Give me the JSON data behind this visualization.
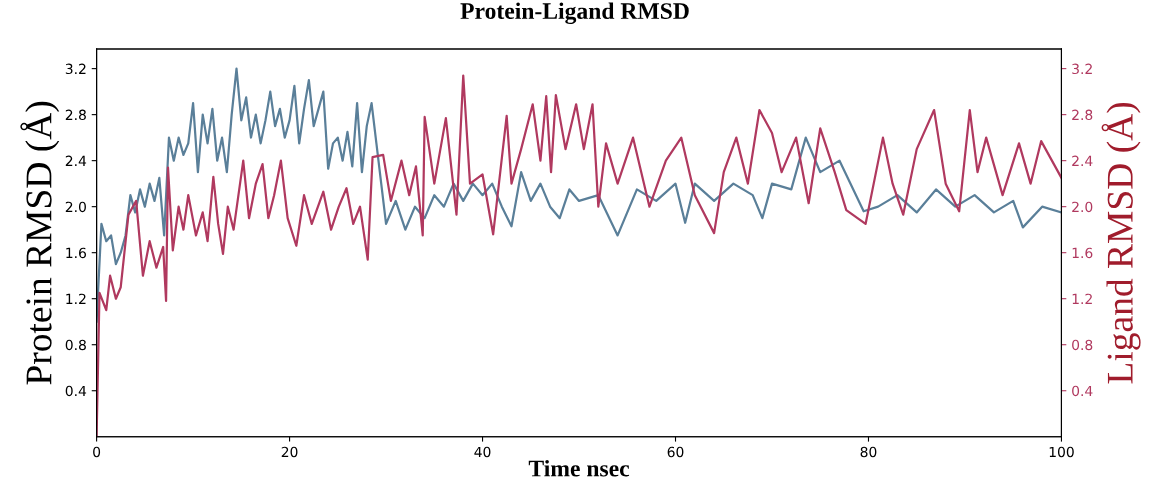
{
  "chart_data": {
    "type": "line",
    "title": "Protein-Ligand RMSD",
    "xlabel": "Time nsec",
    "ylabel": "Protein RMSD (Å)",
    "y2label": "Ligand RMSD (Å)",
    "xlim": [
      0,
      100
    ],
    "xticks": [
      0,
      20,
      40,
      60,
      80,
      100
    ],
    "ylim": [
      0,
      3.37
    ],
    "yticks": [
      0.4,
      0.8,
      1.2,
      1.6,
      {
        "value": 2,
        "label": "2.0"
      },
      2.4,
      2.8,
      3.2
    ],
    "y2lim": [
      0,
      3.37
    ],
    "y2ticks": [
      0.4,
      0.8,
      1.2,
      1.6,
      {
        "value": 2,
        "label": "2.0"
      },
      2.4,
      2.8,
      3.2
    ],
    "grid": false,
    "legend": false,
    "series": [
      {
        "color": "#5a7f99",
        "x": [
          0,
          0.5,
          1,
          1.5,
          2,
          2.5,
          3,
          3.5,
          4,
          4.5,
          5,
          5.5,
          6,
          6.5,
          7,
          7.5,
          8,
          8.5,
          9,
          9.5,
          10,
          10.5,
          11,
          11.5,
          12,
          12.5,
          13,
          13.5,
          14,
          14.5,
          15,
          15.5,
          16,
          16.5,
          17,
          17.5,
          18,
          18.5,
          19,
          19.5,
          20,
          20.5,
          21,
          21.5,
          22,
          22.5,
          23,
          23.5,
          24,
          24.5,
          25,
          25.5,
          26,
          26.5,
          27,
          27.5,
          28,
          28.5,
          29,
          29.5,
          30,
          31,
          32,
          33,
          34,
          35,
          36,
          37,
          38,
          39,
          40,
          41,
          42,
          43,
          44,
          45,
          46,
          47,
          48,
          49,
          50,
          52,
          54,
          56,
          58,
          60,
          61,
          62,
          64,
          66,
          68,
          69,
          70,
          72,
          73.5,
          75,
          77,
          79.5,
          81,
          83,
          85,
          87,
          89,
          91,
          93,
          95,
          96,
          98,
          100
        ],
        "values": [
          1.0,
          1.85,
          1.7,
          1.75,
          1.5,
          1.6,
          1.75,
          2.1,
          1.95,
          2.15,
          2.0,
          2.2,
          2.05,
          2.25,
          1.75,
          2.6,
          2.4,
          2.6,
          2.45,
          2.55,
          2.9,
          2.3,
          2.8,
          2.55,
          2.85,
          2.4,
          2.6,
          2.3,
          2.8,
          3.2,
          2.75,
          2.95,
          2.6,
          2.8,
          2.55,
          2.75,
          3.0,
          2.7,
          2.85,
          2.6,
          2.75,
          3.05,
          2.55,
          2.85,
          3.1,
          2.7,
          2.85,
          3.0,
          2.33,
          2.55,
          2.6,
          2.4,
          2.65,
          2.35,
          2.9,
          2.3,
          2.7,
          2.9,
          2.55,
          2.2,
          1.85,
          2.05,
          1.8,
          2.0,
          1.9,
          2.1,
          2.0,
          2.2,
          2.05,
          2.2,
          2.1,
          2.2,
          2.0,
          1.83,
          2.3,
          2.05,
          2.2,
          2.0,
          1.9,
          2.15,
          2.05,
          2.1,
          1.75,
          2.15,
          2.05,
          2.2,
          1.86,
          2.2,
          2.05,
          2.2,
          2.1,
          1.9,
          2.2,
          2.15,
          2.6,
          2.3,
          2.4,
          1.96,
          2.0,
          2.1,
          1.95,
          2.15,
          2.0,
          2.1,
          1.95,
          2.05,
          1.82,
          2.0,
          1.95
        ]
      },
      {
        "color": "#b0395f",
        "axis": "y2",
        "x": [
          0,
          0.3,
          1,
          1.4,
          2,
          2.5,
          3.3,
          4.1,
          4.8,
          5.5,
          6.2,
          6.9,
          7.2,
          7.4,
          7.9,
          8.5,
          9,
          9.5,
          10.3,
          11,
          11.5,
          12.1,
          12.6,
          13.1,
          13.6,
          14.2,
          15.2,
          15.8,
          16.5,
          17.2,
          17.8,
          18.4,
          19.1,
          19.8,
          20.7,
          21.5,
          22.3,
          23.5,
          24.3,
          25.1,
          25.9,
          26.6,
          27.3,
          28.1,
          28.6,
          29.7,
          30.5,
          31.6,
          32.4,
          33.1,
          33.8,
          34.0,
          35,
          36.2,
          37.3,
          38,
          38.7,
          40,
          41.1,
          42.5,
          43,
          44,
          45.2,
          46,
          46.6,
          47.1,
          47.6,
          48.6,
          49.7,
          50.5,
          51.4,
          52,
          52.8,
          54,
          55.6,
          57.3,
          59,
          60.6,
          62,
          64,
          65,
          66.3,
          67.5,
          68.7,
          70,
          71,
          72.5,
          73.8,
          75,
          76.5,
          77.7,
          79.7,
          81.5,
          82.5,
          83.6,
          85,
          86.8,
          88,
          89.4,
          90.5,
          91.3,
          92.2,
          93.9,
          95.6,
          96.8,
          97.9,
          100
        ],
        "values": [
          0.0,
          1.25,
          1.1,
          1.4,
          1.2,
          1.3,
          1.93,
          2.05,
          1.4,
          1.7,
          1.47,
          1.65,
          1.18,
          2.34,
          1.62,
          2.0,
          1.8,
          2.1,
          1.75,
          1.95,
          1.7,
          2.26,
          1.85,
          1.59,
          2.0,
          1.8,
          2.4,
          1.9,
          2.2,
          2.37,
          1.9,
          2.1,
          2.4,
          1.9,
          1.66,
          2.1,
          1.85,
          2.13,
          1.8,
          2.0,
          2.16,
          1.85,
          2.0,
          1.54,
          2.43,
          2.45,
          2.05,
          2.4,
          2.1,
          2.35,
          1.75,
          2.78,
          2.2,
          2.77,
          1.93,
          3.14,
          2.2,
          2.28,
          1.76,
          2.79,
          2.2,
          2.5,
          2.89,
          2.4,
          2.96,
          2.3,
          2.97,
          2.5,
          2.89,
          2.5,
          2.89,
          2.0,
          2.55,
          2.2,
          2.6,
          2.0,
          2.4,
          2.6,
          2.1,
          1.77,
          2.3,
          2.6,
          2.2,
          2.84,
          2.64,
          2.3,
          2.6,
          2.03,
          2.68,
          2.3,
          1.97,
          1.85,
          2.6,
          2.2,
          1.93,
          2.5,
          2.84,
          2.2,
          1.96,
          2.84,
          2.3,
          2.6,
          2.1,
          2.55,
          2.2,
          2.57,
          2.25
        ]
      }
    ]
  }
}
